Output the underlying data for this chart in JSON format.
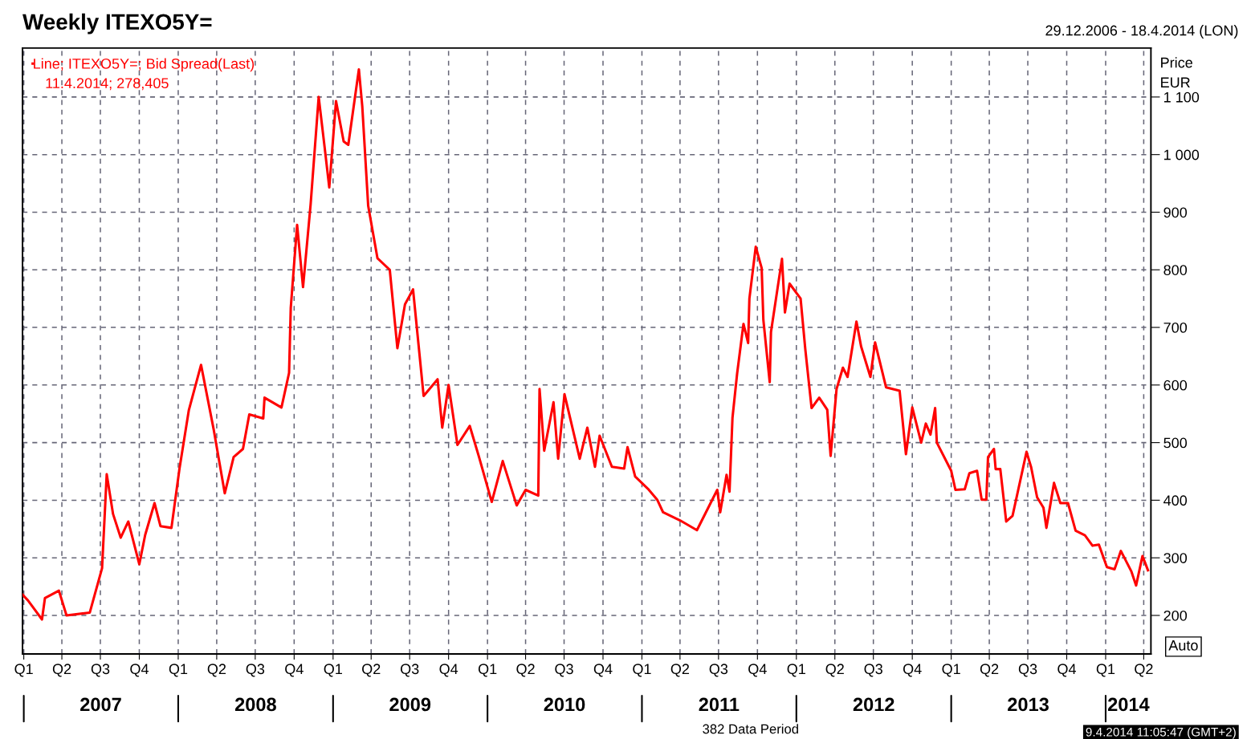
{
  "chart_data": {
    "type": "line",
    "title": "Weekly ITEXO5Y=",
    "subtitle": "29.12.2006 - 18.4.2014 (LON)",
    "ylabel": "Price\nEUR",
    "annotations": [
      "11.4.2014; 278,405",
      "Auto",
      "382 Data Period",
      "9.4.2014 11:05:47 (GMT+2)"
    ],
    "xlim": [
      "2006-12-29",
      "2014-04-18"
    ],
    "ylim": [
      133,
      1185
    ],
    "xticks": [
      {
        "value": "2007-01-01",
        "label": "Q1"
      },
      {
        "value": "2007-04-01",
        "label": "Q2"
      },
      {
        "value": "2007-07-01",
        "label": "Q3"
      },
      {
        "value": "2007-10-01",
        "label": "Q4"
      },
      {
        "value": "2008-01-01",
        "label": "Q1"
      },
      {
        "value": "2008-04-01",
        "label": "Q2"
      },
      {
        "value": "2008-07-01",
        "label": "Q3"
      },
      {
        "value": "2008-10-01",
        "label": "Q4"
      },
      {
        "value": "2009-01-01",
        "label": "Q1"
      },
      {
        "value": "2009-04-01",
        "label": "Q2"
      },
      {
        "value": "2009-07-01",
        "label": "Q3"
      },
      {
        "value": "2009-10-01",
        "label": "Q4"
      },
      {
        "value": "2010-01-01",
        "label": "Q1"
      },
      {
        "value": "2010-04-01",
        "label": "Q2"
      },
      {
        "value": "2010-07-01",
        "label": "Q3"
      },
      {
        "value": "2010-10-01",
        "label": "Q4"
      },
      {
        "value": "2011-01-01",
        "label": "Q1"
      },
      {
        "value": "2011-04-01",
        "label": "Q2"
      },
      {
        "value": "2011-07-01",
        "label": "Q3"
      },
      {
        "value": "2011-10-01",
        "label": "Q4"
      },
      {
        "value": "2012-01-01",
        "label": "Q1"
      },
      {
        "value": "2012-04-01",
        "label": "Q2"
      },
      {
        "value": "2012-07-01",
        "label": "Q3"
      },
      {
        "value": "2012-10-01",
        "label": "Q4"
      },
      {
        "value": "2013-01-01",
        "label": "Q1"
      },
      {
        "value": "2013-04-01",
        "label": "Q2"
      },
      {
        "value": "2013-07-01",
        "label": "Q3"
      },
      {
        "value": "2013-10-01",
        "label": "Q4"
      },
      {
        "value": "2014-01-01",
        "label": "Q1"
      },
      {
        "value": "2014-04-01",
        "label": "Q2"
      }
    ],
    "x2lim": [
      "2006-12-29",
      "2014-04-18"
    ],
    "x2ticks": [
      {
        "value": "2007-01-01",
        "label": null
      },
      {
        "value": "2007-07-02",
        "label": "2007"
      },
      {
        "value": "2008-01-01",
        "label": null
      },
      {
        "value": "2008-07-02",
        "label": "2008"
      },
      {
        "value": "2009-01-01",
        "label": null
      },
      {
        "value": "2009-07-02",
        "label": "2009"
      },
      {
        "value": "2010-01-01",
        "label": null
      },
      {
        "value": "2010-07-02",
        "label": "2010"
      },
      {
        "value": "2011-01-01",
        "label": null
      },
      {
        "value": "2011-07-02",
        "label": "2011"
      },
      {
        "value": "2012-01-01",
        "label": null
      },
      {
        "value": "2012-07-02",
        "label": "2012"
      },
      {
        "value": "2013-01-01",
        "label": null
      },
      {
        "value": "2013-07-02",
        "label": "2013"
      },
      {
        "value": "2014-01-01",
        "label": null
      },
      {
        "value": "2014-02-24",
        "label": "2014"
      }
    ],
    "yticks": [
      200,
      300,
      400,
      500,
      600,
      700,
      800,
      900,
      {
        "value": 1000,
        "label": "1 000"
      },
      {
        "value": 1100,
        "label": "1 100"
      }
    ],
    "grid": true,
    "legend": "top left",
    "line_style": "solid",
    "marker": "none",
    "series": [
      {
        "name": "Line; ITEXO5Y=; Bid Spread(Last)",
        "color": "#ff0000",
        "x": [
          "2006-12-29",
          "2007-01-11",
          "2007-02-13",
          "2007-02-20",
          "2007-03-25",
          "2007-04-12",
          "2007-06-06",
          "2007-07-05",
          "2007-07-16",
          "2007-07-31",
          "2007-08-18",
          "2007-09-05",
          "2007-10-01",
          "2007-10-15",
          "2007-11-06",
          "2007-11-20",
          "2007-12-16",
          "2008-01-04",
          "2008-01-26",
          "2008-02-24",
          "2008-03-25",
          "2008-04-20",
          "2008-05-11",
          "2008-06-02",
          "2008-06-17",
          "2008-07-20",
          "2008-07-23",
          "2008-09-01",
          "2008-09-19",
          "2008-09-23",
          "2008-10-08",
          "2008-10-22",
          "2008-11-09",
          "2008-11-28",
          "2008-12-12",
          "2008-12-23",
          "2009-01-08",
          "2009-01-26",
          "2009-02-06",
          "2009-03-03",
          "2009-03-11",
          "2009-03-25",
          "2009-04-16",
          "2009-05-15",
          "2009-06-02",
          "2009-06-20",
          "2009-07-09",
          "2009-08-03",
          "2009-09-05",
          "2009-09-16",
          "2009-10-01",
          "2009-10-22",
          "2009-11-20",
          "2009-12-12",
          "2010-01-11",
          "2010-02-06",
          "2010-03-11",
          "2010-04-01",
          "2010-05-01",
          "2010-05-04",
          "2010-05-15",
          "2010-06-06",
          "2010-06-17",
          "2010-07-02",
          "2010-08-07",
          "2010-08-25",
          "2010-09-12",
          "2010-09-23",
          "2010-10-22",
          "2010-11-20",
          "2010-11-28",
          "2010-12-16",
          "2011-01-15",
          "2011-02-06",
          "2011-02-20",
          "2011-04-01",
          "2011-05-11",
          "2011-06-28",
          "2011-07-05",
          "2011-07-20",
          "2011-07-27",
          "2011-08-03",
          "2011-08-14",
          "2011-08-29",
          "2011-09-09",
          "2011-09-12",
          "2011-09-27",
          "2011-10-11",
          "2011-10-15",
          "2011-10-30",
          "2011-11-02",
          "2011-11-28",
          "2011-12-05",
          "2011-12-16",
          "2012-01-11",
          "2012-01-22",
          "2012-02-06",
          "2012-02-24",
          "2012-03-14",
          "2012-03-22",
          "2012-04-05",
          "2012-04-20",
          "2012-05-01",
          "2012-05-22",
          "2012-06-02",
          "2012-06-24",
          "2012-07-05",
          "2012-07-31",
          "2012-09-01",
          "2012-09-16",
          "2012-10-01",
          "2012-10-22",
          "2012-11-02",
          "2012-11-13",
          "2012-11-24",
          "2012-11-28",
          "2013-01-01",
          "2013-01-11",
          "2013-02-02",
          "2013-02-13",
          "2013-03-03",
          "2013-03-14",
          "2013-03-25",
          "2013-03-29",
          "2013-04-12",
          "2013-04-16",
          "2013-04-27",
          "2013-05-11",
          "2013-05-26",
          "2013-06-28",
          "2013-07-09",
          "2013-07-23",
          "2013-08-07",
          "2013-08-14",
          "2013-09-01",
          "2013-09-16",
          "2013-10-04",
          "2013-10-22",
          "2013-11-13",
          "2013-12-01",
          "2013-12-16",
          "2014-01-04",
          "2014-01-22",
          "2014-02-06",
          "2014-03-03",
          "2014-03-14",
          "2014-03-29",
          "2014-04-05",
          "2014-04-11"
        ],
        "values": [
          236,
          226,
          193,
          230,
          243,
          200,
          205,
          282,
          445,
          376,
          335,
          363,
          289,
          340,
          395,
          355,
          352,
          455,
          556,
          635,
          522,
          412,
          475,
          489,
          549,
          542,
          578,
          561,
          621,
          734,
          878,
          770,
          914,
          1100,
          1013,
          943,
          1093,
          1023,
          1017,
          1148,
          1084,
          911,
          820,
          800,
          664,
          740,
          766,
          581,
          610,
          526,
          600,
          496,
          529,
          475,
          397,
          468,
          391,
          418,
          408,
          593,
          486,
          570,
          472,
          584,
          472,
          526,
          458,
          512,
          458,
          455,
          492,
          441,
          420,
          401,
          379,
          365,
          348,
          418,
          379,
          444,
          415,
          543,
          620,
          706,
          673,
          750,
          840,
          803,
          713,
          605,
          692,
          819,
          726,
          776,
          750,
          663,
          560,
          578,
          557,
          477,
          593,
          630,
          614,
          710,
          667,
          614,
          674,
          596,
          590,
          480,
          561,
          500,
          533,
          514,
          560,
          500,
          451,
          418,
          419,
          447,
          451,
          401,
          401,
          475,
          489,
          454,
          454,
          363,
          373,
          484,
          457,
          405,
          387,
          352,
          430,
          395,
          395,
          347,
          339,
          321,
          323,
          284,
          280,
          312,
          276,
          252,
          303,
          290,
          278.405
        ]
      }
    ]
  }
}
